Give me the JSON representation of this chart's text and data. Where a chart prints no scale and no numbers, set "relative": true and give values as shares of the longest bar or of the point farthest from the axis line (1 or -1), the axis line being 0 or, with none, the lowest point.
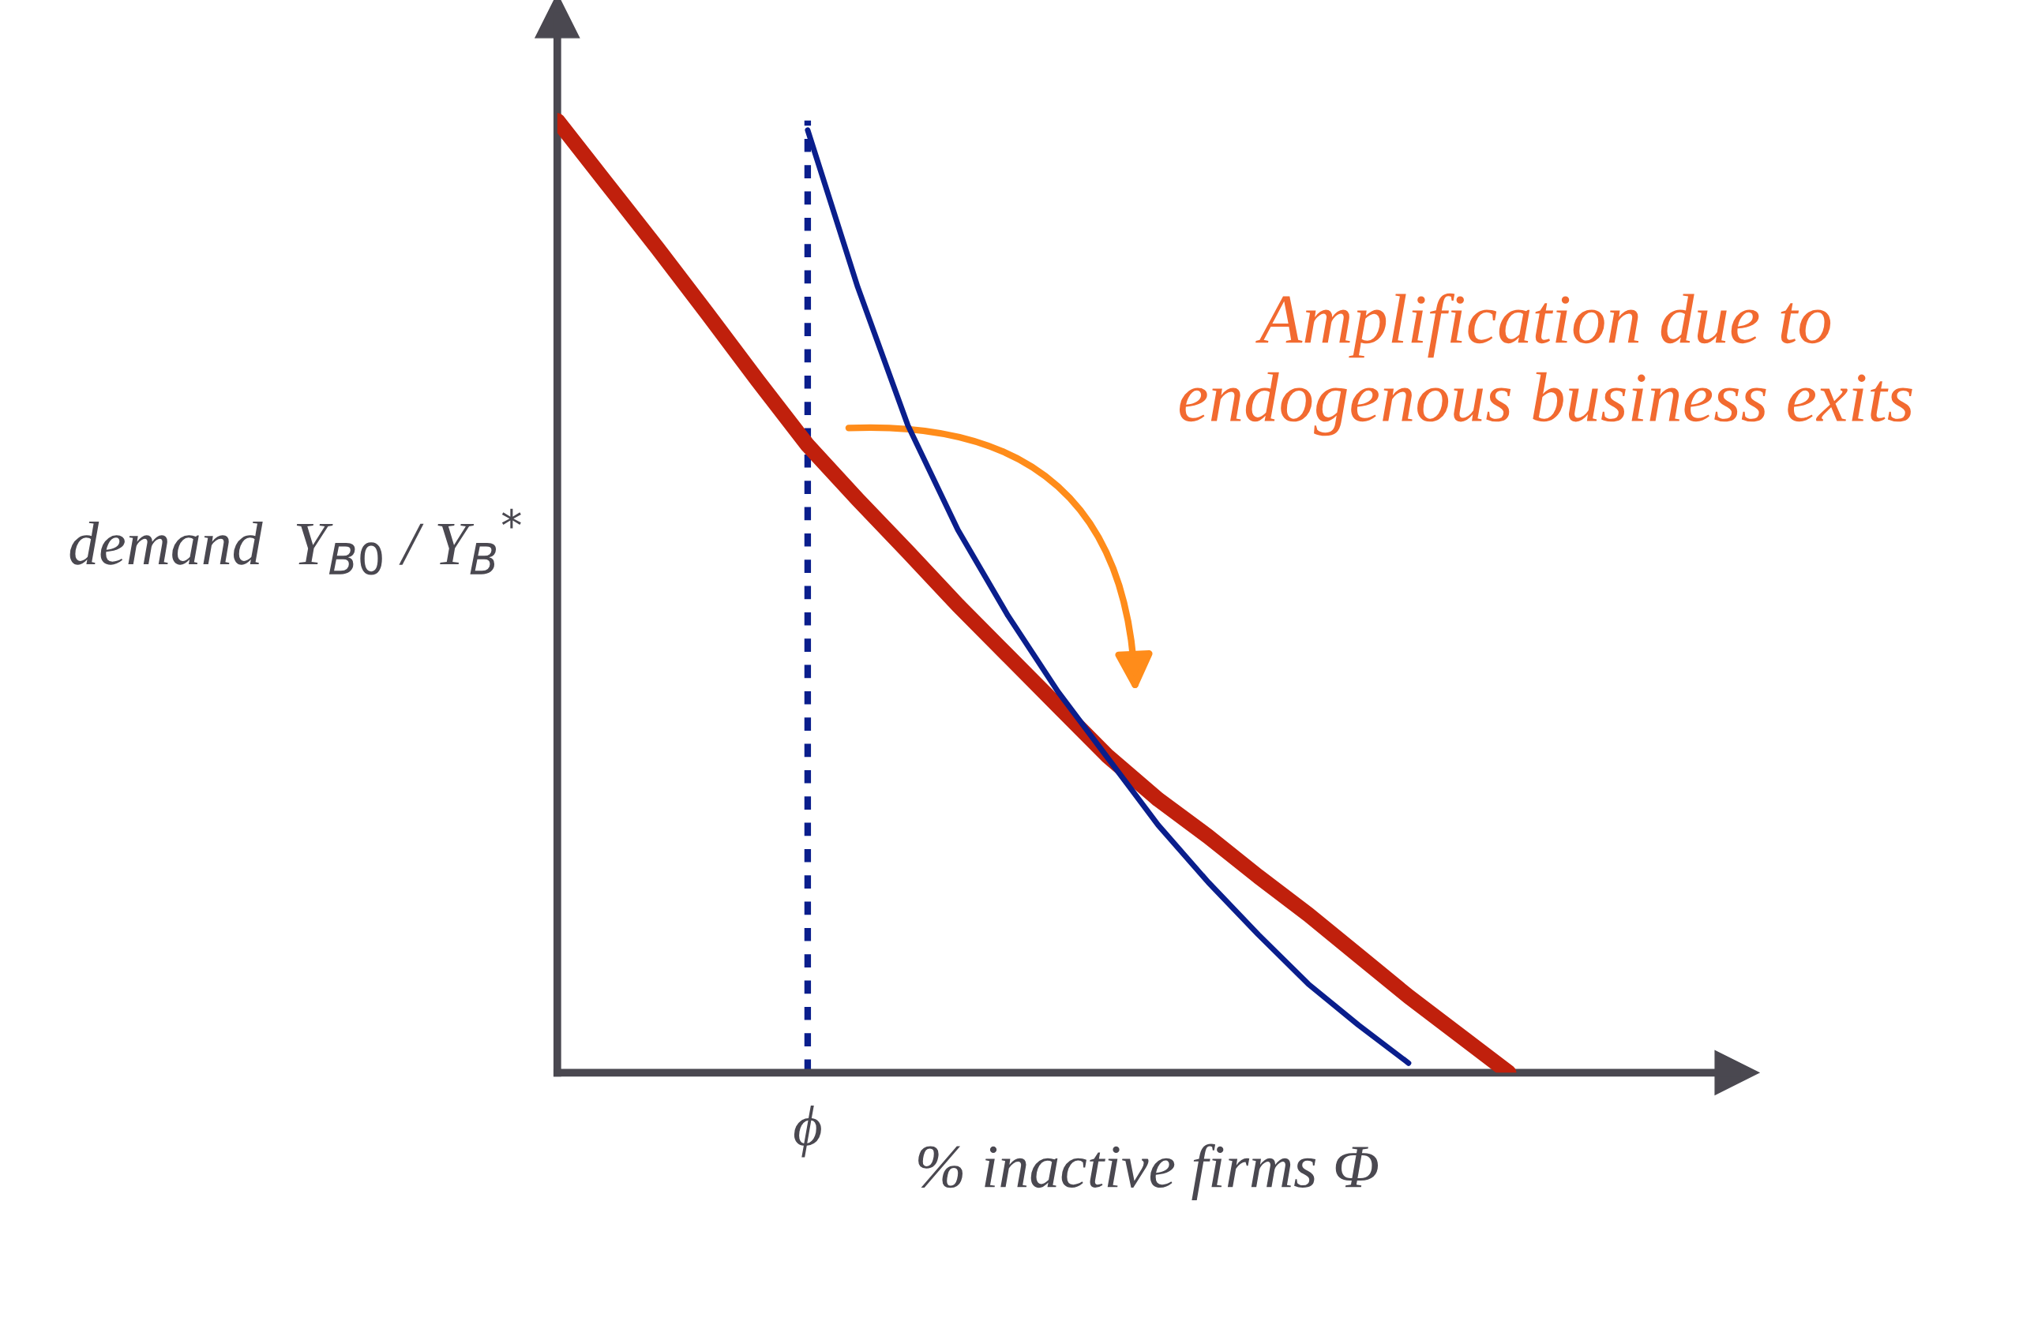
{
  "chart_data": {
    "type": "line",
    "relative": true,
    "xlabel": "% inactive firms Φ",
    "ylabel": "demand  Y$_{B0}$ / Y$_{B}$$^{*}$",
    "marker": "none",
    "categories": [
      null,
      null,
      null,
      null,
      null,
      null,
      null,
      null,
      null,
      null,
      null,
      null,
      null,
      null,
      null,
      null,
      null,
      null,
      null,
      null
    ],
    "series": [
      {
        "color": "#c0200c",
        "values": [
          1,
          0.933,
          0.866,
          0.797,
          0.727,
          0.659,
          0.602,
          0.547,
          0.491,
          0.438,
          0.385,
          0.332,
          0.287,
          0.248,
          0.206,
          0.166,
          0.123,
          0.08,
          0.04,
          0
        ]
      },
      {
        "color": "#0a1e8c",
        "values": [
          null,
          null,
          null,
          null,
          null,
          0.99,
          0.825,
          0.68,
          0.57,
          0.48,
          0.4,
          0.33,
          0.26,
          0.2,
          0.145,
          0.093,
          0.05,
          0.01,
          null,
          null
        ]
      }
    ],
    "annotations": [
      "ϕ",
      "Amplification due to\nendogenous business exits"
    ]
  }
}
